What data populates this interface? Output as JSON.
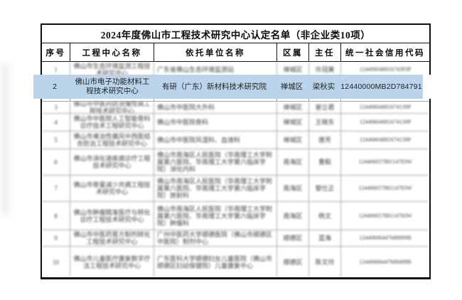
{
  "page": {
    "background": "#ffffff"
  },
  "table": {
    "title": "2024年度佛山市工程技术研究中心认定名单（非企业类10项）",
    "columns": [
      "序号",
      "工程中心名称",
      "依托单位名称",
      "区属",
      "主任",
      "统一社会信用代码"
    ],
    "highlight_color": "#bad5eb",
    "rows": [
      {
        "no": "1",
        "name": "佛山市生态环境监测工程技术研究中心",
        "unit": "广东省佛山生态环境监测站",
        "district": "禅城区",
        "director": "许冠美",
        "code": "12440604881674393P",
        "blurred": true,
        "highlighted": false
      },
      {
        "no": "2",
        "name": "佛山市电子功能材料工程技术研究中心",
        "unit": "有研（广东）新材料技术研究院",
        "district": "禅城区",
        "director": "梁秋实",
        "code": "12440000MB2D784791",
        "blurred": false,
        "highlighted": true
      },
      {
        "no": "3",
        "name": "佛山市中医药防治慢性病工程技术研究中心",
        "unit": "佛山市中医院大外科",
        "district": "禅城区",
        "director": "谢立君",
        "code": "12440604881674139P",
        "blurred": true,
        "highlighted": false
      },
      {
        "no": "4",
        "name": "佛山市中医院人工智能骨科诊疗技术工程研究中心",
        "unit": "佛山市中医院骨科",
        "district": "禅城区",
        "director": "王晓东",
        "code": "12440604881674139P",
        "blurred": true,
        "highlighted": false
      },
      {
        "no": "5",
        "name": "佛山市难治性痛风中西医结合防治工程技术研究中心",
        "unit": "佛山市中医院风湿科、血液科",
        "district": "禅城区",
        "director": "唐芳",
        "code": "12440604881674139P",
        "blurred": true,
        "highlighted": false
      },
      {
        "no": "6",
        "name": "佛山市消化道疾病诊疗工程技术研究中心",
        "unit": "佛山市南海区人民医院（华南理工大学附属第六医院、华南理工大学第六临床学院）消化内科",
        "district": "南海区",
        "director": "曹毅",
        "code": "12440605788114783W",
        "blurred": true,
        "highlighted": false
      },
      {
        "no": "7",
        "name": "佛山市骨量减少共病工程技术研究中心",
        "unit": "佛山市南海区人民医院（华南理工大学附属第六医院、华南理工大学第六临床学院）放射科",
        "district": "南海区",
        "director": "黎仕正",
        "code": "12440605788114783W",
        "blurred": true,
        "highlighted": false
      },
      {
        "no": "8",
        "name": "佛山市肿瘤精准医疗与转化诊疗工程技术研究中心",
        "unit": "佛山市南海区人民医院（华南理工大学附属第六医院、华南理工大学第六临床学院）肿瘤科",
        "district": "南海区",
        "director": "杨文",
        "code": "12440605788114783W",
        "blurred": true,
        "highlighted": false
      },
      {
        "no": "9",
        "name": "佛山市中医药膏方制剂转化工程技术研究中心",
        "unit": "广州中医药大学顺德医院（佛山市顺德区中医院）制剂中心",
        "district": "顺德区",
        "director": "蓝海",
        "code": "12440606447688899B",
        "blurred": true,
        "highlighted": false
      },
      {
        "no": "10",
        "name": "佛山市儿童医疗康复数字疗法工程技术研究中心",
        "unit": "广东医科大学顺德妇女儿童医院（佛山市顺德区妇幼保健院）儿童康复中心",
        "district": "顺德区",
        "director": "陈文玲",
        "code": "12440606447688499B",
        "blurred": true,
        "highlighted": false
      }
    ]
  }
}
